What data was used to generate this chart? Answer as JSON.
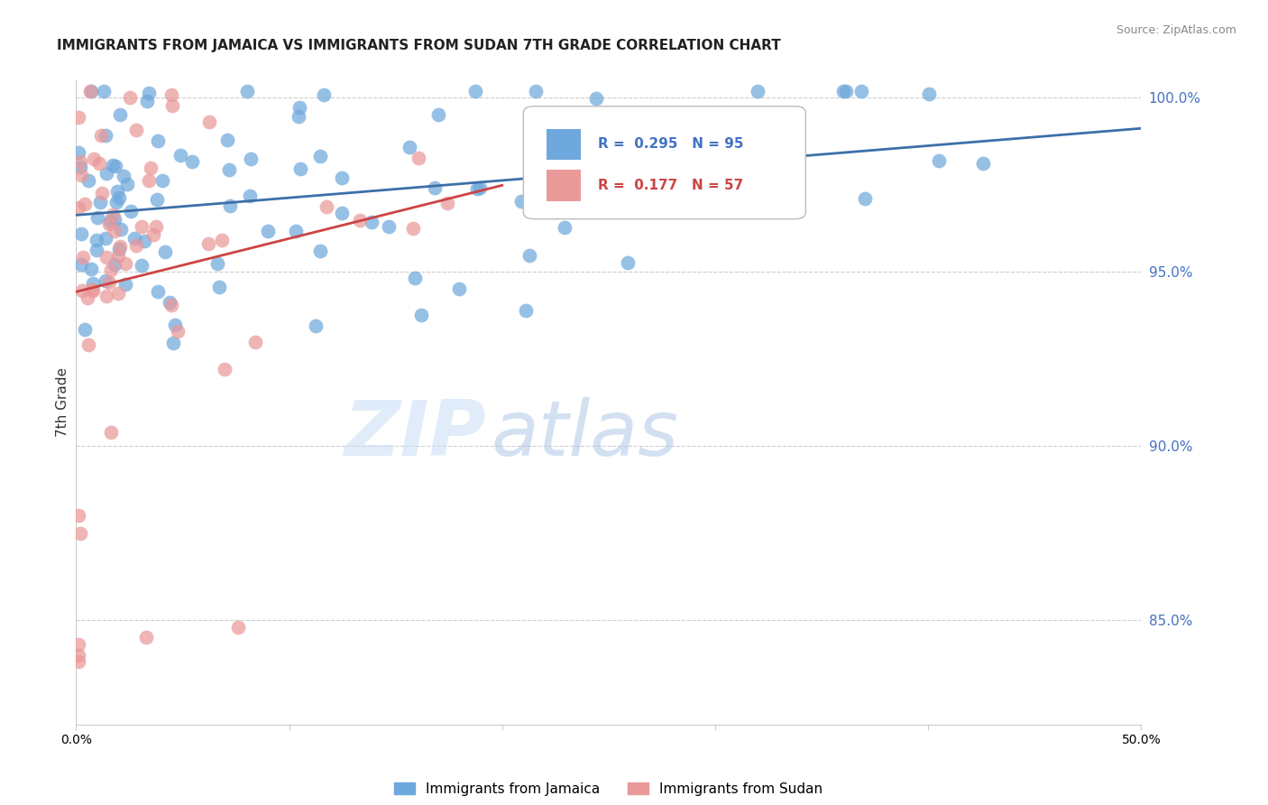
{
  "title": "IMMIGRANTS FROM JAMAICA VS IMMIGRANTS FROM SUDAN 7TH GRADE CORRELATION CHART",
  "source": "Source: ZipAtlas.com",
  "ylabel_left": "7th Grade",
  "legend_labels": [
    "Immigrants from Jamaica",
    "Immigrants from Sudan"
  ],
  "jamaica_color": "#6fa8dc",
  "sudan_color": "#ea9999",
  "jamaica_line_color": "#3d6fa8",
  "sudan_line_color": "#cc4444",
  "jamaica_R": 0.295,
  "jamaica_N": 95,
  "sudan_R": 0.177,
  "sudan_N": 57,
  "xlim": [
    0.0,
    0.5
  ],
  "ylim": [
    0.82,
    1.005
  ],
  "yticks_right": [
    0.85,
    0.9,
    0.95,
    1.0
  ],
  "background_color": "#ffffff",
  "grid_color": "#cccccc",
  "watermark_zip": "ZIP",
  "watermark_atlas": "atlas"
}
